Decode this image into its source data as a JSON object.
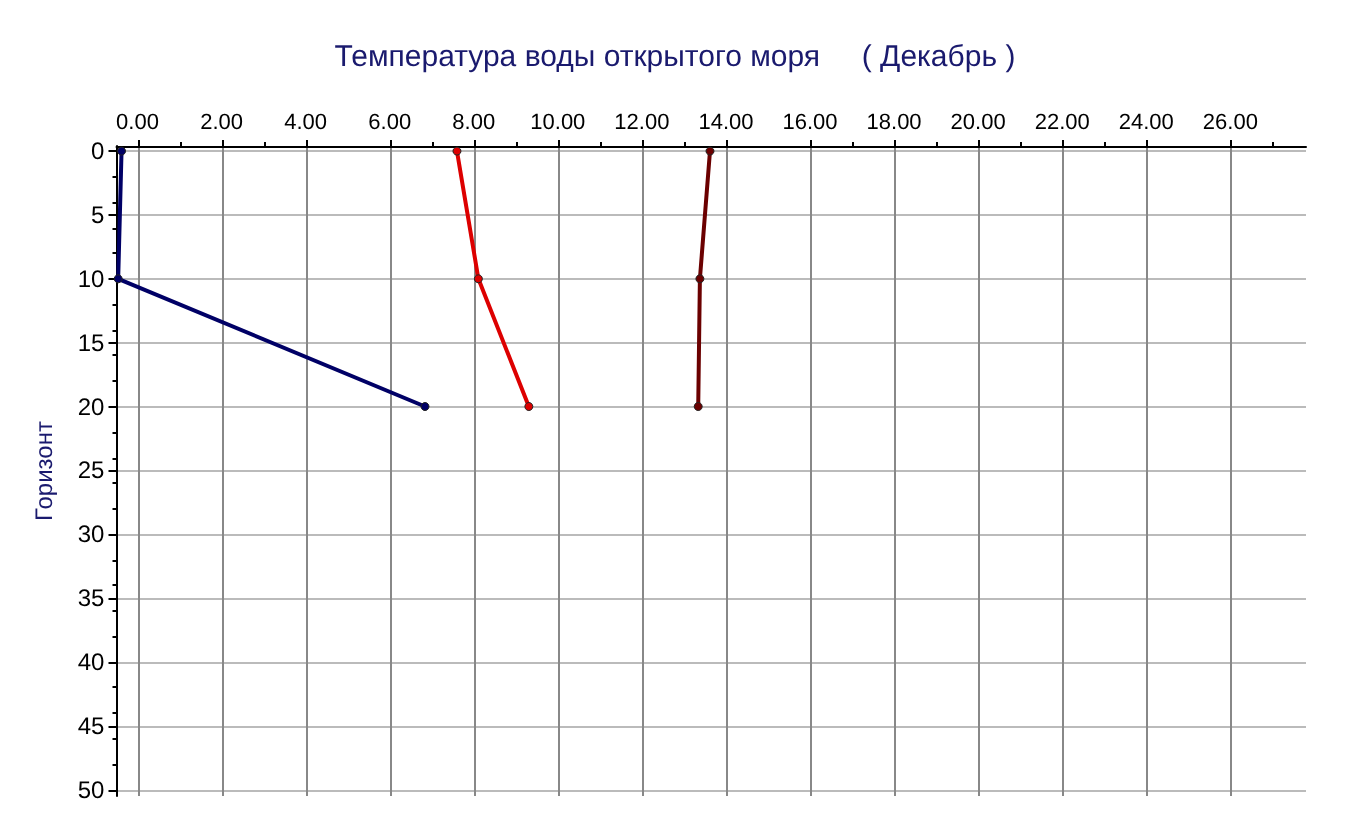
{
  "chart_data": {
    "type": "line",
    "title": "Температура воды открытого моря     ( Декабрь )",
    "ylabel": "Горизонт",
    "xlim": [
      -0.5,
      27.8
    ],
    "ylim": [
      50.5,
      -0.4
    ],
    "xticks": [
      {
        "value": 0,
        "label": "0.00"
      },
      {
        "value": 2,
        "label": "2.00"
      },
      {
        "value": 4,
        "label": "4.00"
      },
      {
        "value": 6,
        "label": "6.00"
      },
      {
        "value": 8,
        "label": "8.00"
      },
      {
        "value": 10,
        "label": "10.00"
      },
      {
        "value": 12,
        "label": "12.00"
      },
      {
        "value": 14,
        "label": "14.00"
      },
      {
        "value": 16,
        "label": "16.00"
      },
      {
        "value": 18,
        "label": "18.00"
      },
      {
        "value": 20,
        "label": "20.00"
      },
      {
        "value": 22,
        "label": "22.00"
      },
      {
        "value": 24,
        "label": "24.00"
      },
      {
        "value": 26,
        "label": "26.00"
      }
    ],
    "yticks": [
      0,
      5,
      10,
      15,
      20,
      25,
      30,
      35,
      40,
      45,
      50
    ],
    "grid": true,
    "marker": "circle",
    "line_style": "solid",
    "series": [
      {
        "color": "#000066",
        "x": [
          -0.38,
          -0.46,
          6.84
        ],
        "values": [
          0,
          10,
          20
        ]
      },
      {
        "color": "#dd0000",
        "x": [
          7.6,
          8.11,
          9.31
        ],
        "values": [
          0,
          10,
          20
        ]
      },
      {
        "color": "#6b0000",
        "x": [
          13.62,
          13.38,
          13.34
        ],
        "values": [
          0,
          10,
          20
        ]
      }
    ]
  }
}
